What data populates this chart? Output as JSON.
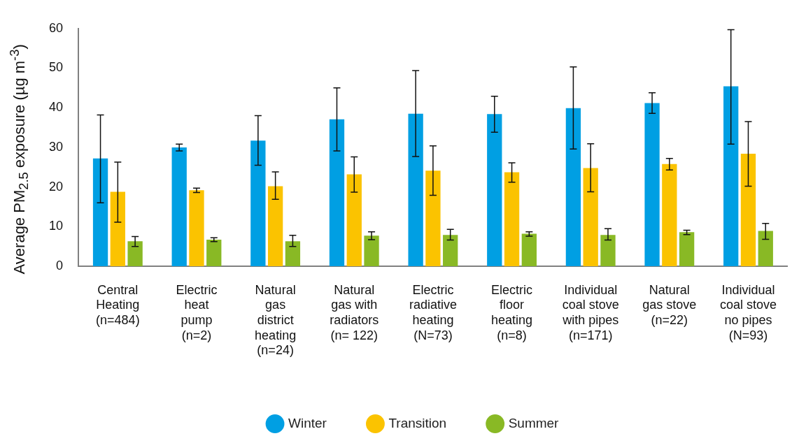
{
  "chart_data": {
    "type": "bar",
    "ylabel": "Average PM$_{2.5}$ exposure (µg m$^{-3}$)",
    "categories": [
      "Central\nHeating\n(n=484)",
      "Electric\nheat\npump\n(n=2)",
      "Natural\ngas\ndistrict\nheating\n(n=24)",
      "Natural\ngas with\nradiators\n(n= 122)",
      "Electric\nradiative\nheating\n(N=73)",
      "Electric\nfloor\nheating\n(n=8)",
      "Individual\ncoal stove\nwith pipes\n(n=171)",
      "Natural\ngas stove\n(n=22)",
      "Individual\ncoal stove\nno pipes\n(N=93)"
    ],
    "series": [
      {
        "name": "Winter",
        "color": "#009fe3",
        "values": [
          27.2,
          30.0,
          31.7,
          37.1,
          38.5,
          38.4,
          39.9,
          41.2,
          45.4
        ],
        "errors": [
          [
            16.0,
            38.2
          ],
          [
            29.1,
            30.8
          ],
          [
            25.5,
            38.0
          ],
          [
            29.1,
            45.0
          ],
          [
            27.7,
            49.4
          ],
          [
            33.8,
            42.9
          ],
          [
            29.6,
            50.3
          ],
          [
            38.6,
            43.8
          ],
          [
            30.8,
            59.7
          ]
        ]
      },
      {
        "name": "Transition",
        "color": "#fbc300",
        "values": [
          18.8,
          19.2,
          20.2,
          23.2,
          24.1,
          23.7,
          24.8,
          25.8,
          28.4
        ],
        "errors": [
          [
            11.1,
            26.3
          ],
          [
            18.6,
            19.7
          ],
          [
            16.9,
            23.8
          ],
          [
            18.7,
            27.6
          ],
          [
            17.9,
            30.4
          ],
          [
            21.2,
            26.1
          ],
          [
            18.8,
            30.9
          ],
          [
            24.3,
            27.2
          ],
          [
            20.2,
            36.5
          ]
        ]
      },
      {
        "name": "Summer",
        "color": "#89b925",
        "values": [
          6.3,
          6.7,
          6.3,
          7.7,
          7.9,
          8.2,
          7.9,
          8.6,
          8.9
        ],
        "errors": [
          [
            5.0,
            7.5
          ],
          [
            6.2,
            7.2
          ],
          [
            5.0,
            7.8
          ],
          [
            6.7,
            8.7
          ],
          [
            6.6,
            9.3
          ],
          [
            7.6,
            8.7
          ],
          [
            6.6,
            9.5
          ],
          [
            8.0,
            9.1
          ],
          [
            6.8,
            10.8
          ]
        ]
      }
    ],
    "ylim": [
      0,
      60
    ],
    "yticks": [
      0,
      10,
      20,
      30,
      40,
      50,
      60
    ],
    "grid": false,
    "legend": "bottom"
  }
}
